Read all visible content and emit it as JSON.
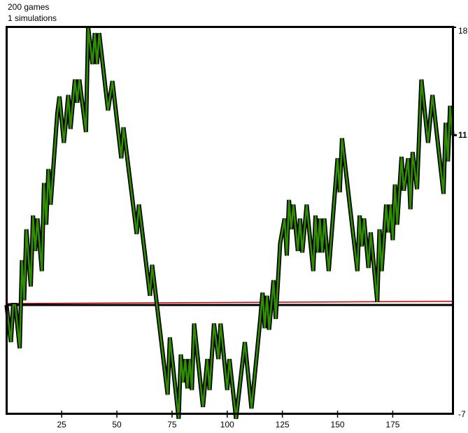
{
  "header": {
    "games_label": "200 games",
    "simulations_label": "1 simulations"
  },
  "chart_data": {
    "type": "line",
    "title": "",
    "xlabel": "",
    "ylabel": "",
    "xlim": [
      0,
      202
    ],
    "ylim": [
      -7,
      18
    ],
    "grid": false,
    "x_ticks": [
      "25",
      "50",
      "75",
      "100",
      "125",
      "150",
      "175"
    ],
    "x_tick_values": [
      25,
      50,
      75,
      100,
      125,
      150,
      175
    ],
    "y_axis_side": "right",
    "y_labels": {
      "top": "18",
      "bottom": "-7",
      "current": "11"
    },
    "y_label_values": {
      "top": 18,
      "bottom": -7,
      "current": 11
    },
    "baseline_value": 0,
    "colors": {
      "walk_fill": "#2f8f00",
      "walk_outline": "#000000",
      "baseline": "#000000",
      "expected": "#d00000"
    },
    "series": [
      {
        "x": [
          0,
          2,
          3,
          4,
          6,
          7,
          8,
          9,
          11,
          12,
          13,
          14,
          16,
          17,
          18,
          19,
          20,
          23,
          24,
          26,
          28,
          29,
          31,
          32,
          33,
          36,
          37,
          39,
          40,
          41,
          42,
          46,
          48,
          52,
          53,
          59,
          60,
          65,
          66,
          73,
          74,
          78,
          79,
          80,
          81,
          82,
          83,
          84,
          85,
          89,
          91,
          92,
          94,
          96,
          97,
          100,
          101,
          104,
          108,
          111,
          115,
          116,
          117,
          118,
          119,
          121,
          122,
          124,
          126,
          127,
          128,
          129,
          130,
          132,
          133,
          134,
          136,
          139,
          140,
          141,
          142,
          143,
          144,
          146,
          150,
          151,
          152,
          159,
          160,
          161,
          162,
          164,
          165,
          168,
          169,
          170,
          172,
          173,
          174,
          175,
          176,
          177,
          179,
          180,
          182,
          183,
          184,
          186,
          188,
          191,
          193,
          198,
          199,
          200,
          201,
          202
        ],
        "y": [
          0,
          -2.4,
          0,
          0,
          -2.8,
          2.9,
          0.3,
          4.9,
          1.2,
          5.8,
          3.5,
          5.6,
          2.2,
          7.9,
          5.2,
          8.8,
          6.5,
          12.4,
          13.5,
          10.5,
          13.6,
          11.4,
          14.6,
          13.1,
          14.6,
          11.2,
          18,
          15.6,
          17.6,
          15.6,
          17.6,
          12.6,
          14.5,
          9.5,
          11.5,
          4.6,
          6.5,
          0.6,
          2.6,
          -5.8,
          -2.1,
          -7.5,
          -3.2,
          -5,
          -3.5,
          -5.4,
          -3.5,
          -5.5,
          -1.2,
          -6.6,
          -3.5,
          -5.5,
          -1.2,
          -3.5,
          -1.2,
          -5.5,
          -3.5,
          -7.5,
          -2.4,
          -6.7,
          -0.9,
          0.8,
          -1.5,
          0.6,
          -1.6,
          1.6,
          -0.9,
          4,
          5.6,
          3.2,
          6.8,
          4.9,
          6.5,
          3.5,
          5.6,
          3.4,
          6.5,
          2.2,
          5.8,
          3.4,
          5.6,
          3.4,
          5.6,
          2.2,
          9.5,
          7.3,
          10.8,
          2.2,
          5.8,
          3.8,
          5.6,
          2.4,
          4.7,
          0.2,
          4.9,
          2.2,
          6.5,
          4.7,
          6.5,
          4.2,
          7.8,
          5.2,
          9.6,
          7.4,
          9.5,
          6.2,
          9.9,
          7.5,
          14.6,
          10.5,
          13.6,
          7.2,
          11.8,
          9.3,
          12.9,
          11
        ]
      },
      {
        "x": [
          0,
          202
        ],
        "y": [
          0,
          0.15
        ]
      }
    ]
  }
}
